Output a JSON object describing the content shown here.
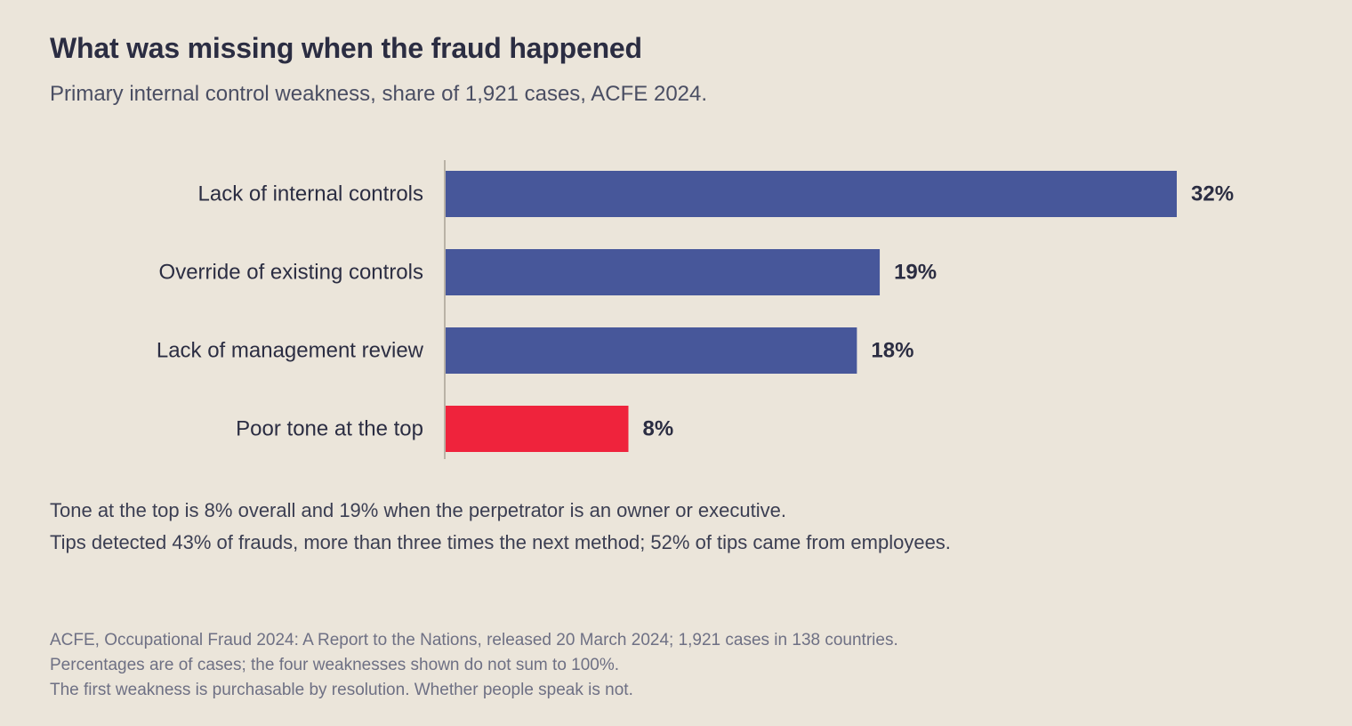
{
  "title": "What was missing when the fraud happened",
  "subtitle": "Primary internal control weakness, share of 1,921 cases, ACFE 2024.",
  "chart_data": {
    "type": "bar",
    "orientation": "horizontal",
    "categories": [
      "Lack of internal controls",
      "Override of existing controls",
      "Lack of management review",
      "Poor tone at the top"
    ],
    "values": [
      32,
      19,
      18,
      8
    ],
    "value_labels": [
      "32%",
      "19%",
      "18%",
      "8%"
    ],
    "highlight_index": 3,
    "colors": {
      "default": "#47579a",
      "highlight": "#ef233c",
      "axis": "#b9b2a6"
    },
    "xlim": [
      0,
      32
    ],
    "grid": false,
    "legend": "none"
  },
  "notes": [
    "Tone at the top is 8% overall and 19% when the perpetrator is an owner or executive.",
    "Tips detected 43% of frauds, more than three times the next method; 52% of tips came from employees."
  ],
  "source": [
    "ACFE, Occupational Fraud 2024: A Report to the Nations, released 20 March 2024; 1,921 cases in 138 countries.",
    "Percentages are of cases; the four weaknesses shown do not sum to 100%.",
    "The first weakness is purchasable by resolution. Whether people speak is not."
  ]
}
